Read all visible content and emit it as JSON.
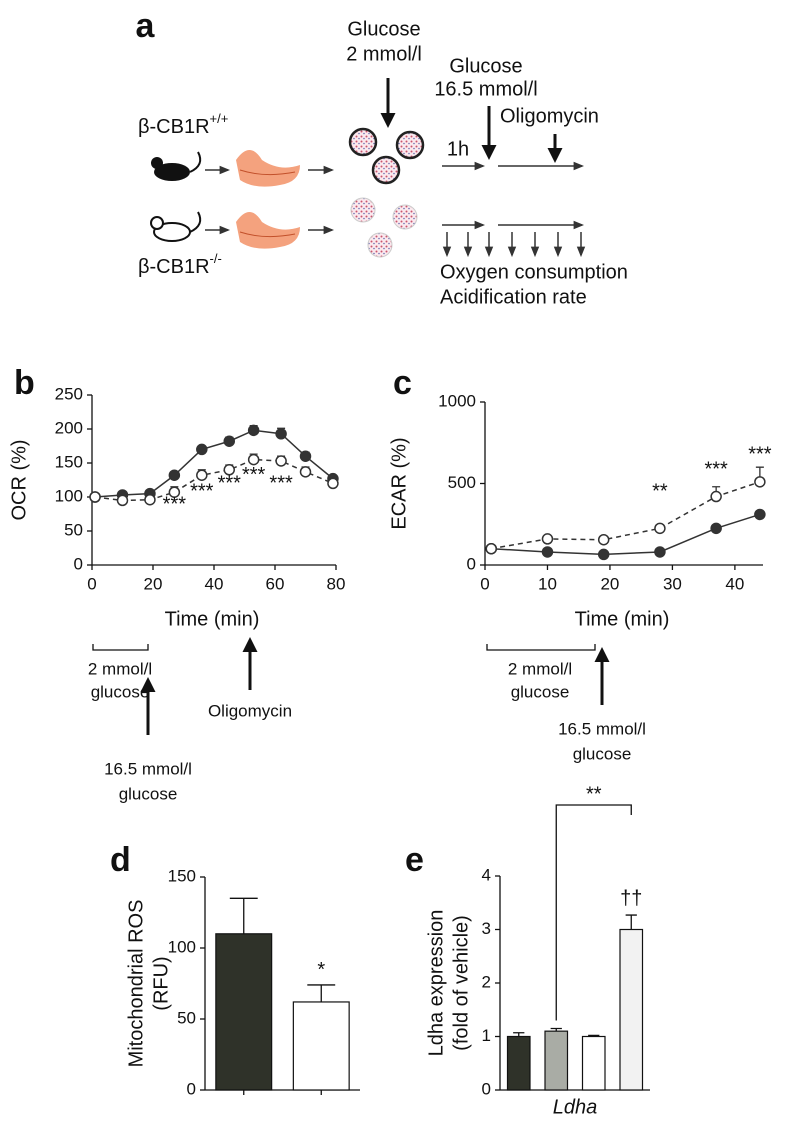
{
  "diagram": {
    "panel": "a",
    "genotype_top": {
      "base": "β-CB1R",
      "sup": "+/+"
    },
    "genotype_bottom": {
      "base": "β-CB1R",
      "sup": "-/-"
    },
    "glucose_low": [
      "Glucose",
      "2 mmol/l"
    ],
    "glucose_high": [
      "Glucose",
      "16.5 mmol/l"
    ],
    "oligomycin": "Oligomycin",
    "time": "1h",
    "readouts": [
      "Oxygen consumption",
      "Acidification rate"
    ]
  },
  "chart_data": [
    {
      "panel": "b",
      "type": "line",
      "xlabel": "Time (min)",
      "ylabel": "OCR (%)",
      "x": [
        1,
        10,
        19,
        27,
        36,
        45,
        53,
        62,
        70,
        79
      ],
      "xlim": [
        0,
        80
      ],
      "xticks": [
        0,
        20,
        40,
        60,
        80
      ],
      "ylim": [
        0,
        250
      ],
      "yticks": [
        0,
        50,
        100,
        150,
        200,
        250
      ],
      "series": [
        {
          "color": "#333333",
          "marker": "filled",
          "dashed": false,
          "values": [
            100,
            103,
            105,
            132,
            170,
            182,
            198,
            193,
            160,
            127
          ],
          "errors": [
            3,
            4,
            4,
            5,
            5,
            6,
            7,
            8,
            6,
            5
          ]
        },
        {
          "color": "#333333",
          "marker": "open",
          "dashed": true,
          "values": [
            100,
            95,
            96,
            107,
            132,
            140,
            155,
            153,
            137,
            120
          ],
          "errors": [
            3,
            3,
            4,
            8,
            8,
            7,
            8,
            7,
            7,
            5
          ]
        }
      ],
      "annotations": [
        {
          "text": "***",
          "x": 27,
          "y": 88
        },
        {
          "text": "***",
          "x": 36,
          "y": 107
        },
        {
          "text": "***",
          "x": 45,
          "y": 119
        },
        {
          "text": "***",
          "x": 53,
          "y": 131
        },
        {
          "text": "***",
          "x": 62,
          "y": 119
        }
      ],
      "notes": [
        [
          "2 mmol/l",
          "glucose"
        ],
        [
          "16.5 mmol/l",
          "glucose"
        ],
        [
          "Oligomycin"
        ]
      ]
    },
    {
      "panel": "c",
      "type": "line",
      "xlabel": "Time (min)",
      "ylabel": "ECAR (%)",
      "x": [
        1,
        10,
        19,
        28,
        37,
        44
      ],
      "xlim": [
        0,
        44.5
      ],
      "xticks": [
        0,
        10,
        20,
        30,
        40
      ],
      "ylim": [
        0,
        1000
      ],
      "yticks": [
        0,
        500,
        1000
      ],
      "series": [
        {
          "color": "#333333",
          "marker": "filled",
          "dashed": false,
          "values": [
            100,
            80,
            65,
            80,
            225,
            310
          ],
          "errors": [
            10,
            8,
            8,
            10,
            15,
            15
          ]
        },
        {
          "color": "#333333",
          "marker": "open",
          "dashed": true,
          "values": [
            100,
            160,
            155,
            225,
            420,
            510
          ],
          "errors": [
            10,
            10,
            12,
            20,
            60,
            90
          ]
        }
      ],
      "annotations": [
        {
          "text": "**",
          "x": 28,
          "y": 448
        },
        {
          "text": "***",
          "x": 37,
          "y": 583
        },
        {
          "text": "***",
          "x": 44,
          "y": 675
        }
      ],
      "notes": [
        [
          "2 mmol/l",
          "glucose"
        ],
        [
          "16.5 mmol/l",
          "glucose"
        ]
      ]
    },
    {
      "panel": "d",
      "type": "bar",
      "ylabel": [
        "Mitochondrial ROS",
        "(RFU)"
      ],
      "categories": [
        null,
        null
      ],
      "values": [
        110,
        62
      ],
      "errors": [
        25,
        12
      ],
      "colors": [
        "#2f3229",
        "#ffffff"
      ],
      "ylim": [
        0,
        150
      ],
      "yticks": [
        0,
        50,
        100,
        150
      ],
      "annotations": [
        "*"
      ]
    },
    {
      "panel": "e",
      "type": "bar",
      "ylabel": [
        "Ldha expression",
        "(fold of vehicle)"
      ],
      "xlabel": "Ldha",
      "categories": [
        null,
        null,
        null,
        null
      ],
      "values": [
        1.0,
        1.1,
        1.0,
        3.0
      ],
      "errors": [
        0.07,
        0.05,
        0.02,
        0.27
      ],
      "colors": [
        "#2f3229",
        "#a9aca5",
        "#ffffff",
        "#f2f2f2"
      ],
      "ylim": [
        0,
        4
      ],
      "yticks": [
        0,
        1,
        2,
        3,
        4
      ],
      "annotations": [
        "**",
        "††"
      ]
    }
  ]
}
